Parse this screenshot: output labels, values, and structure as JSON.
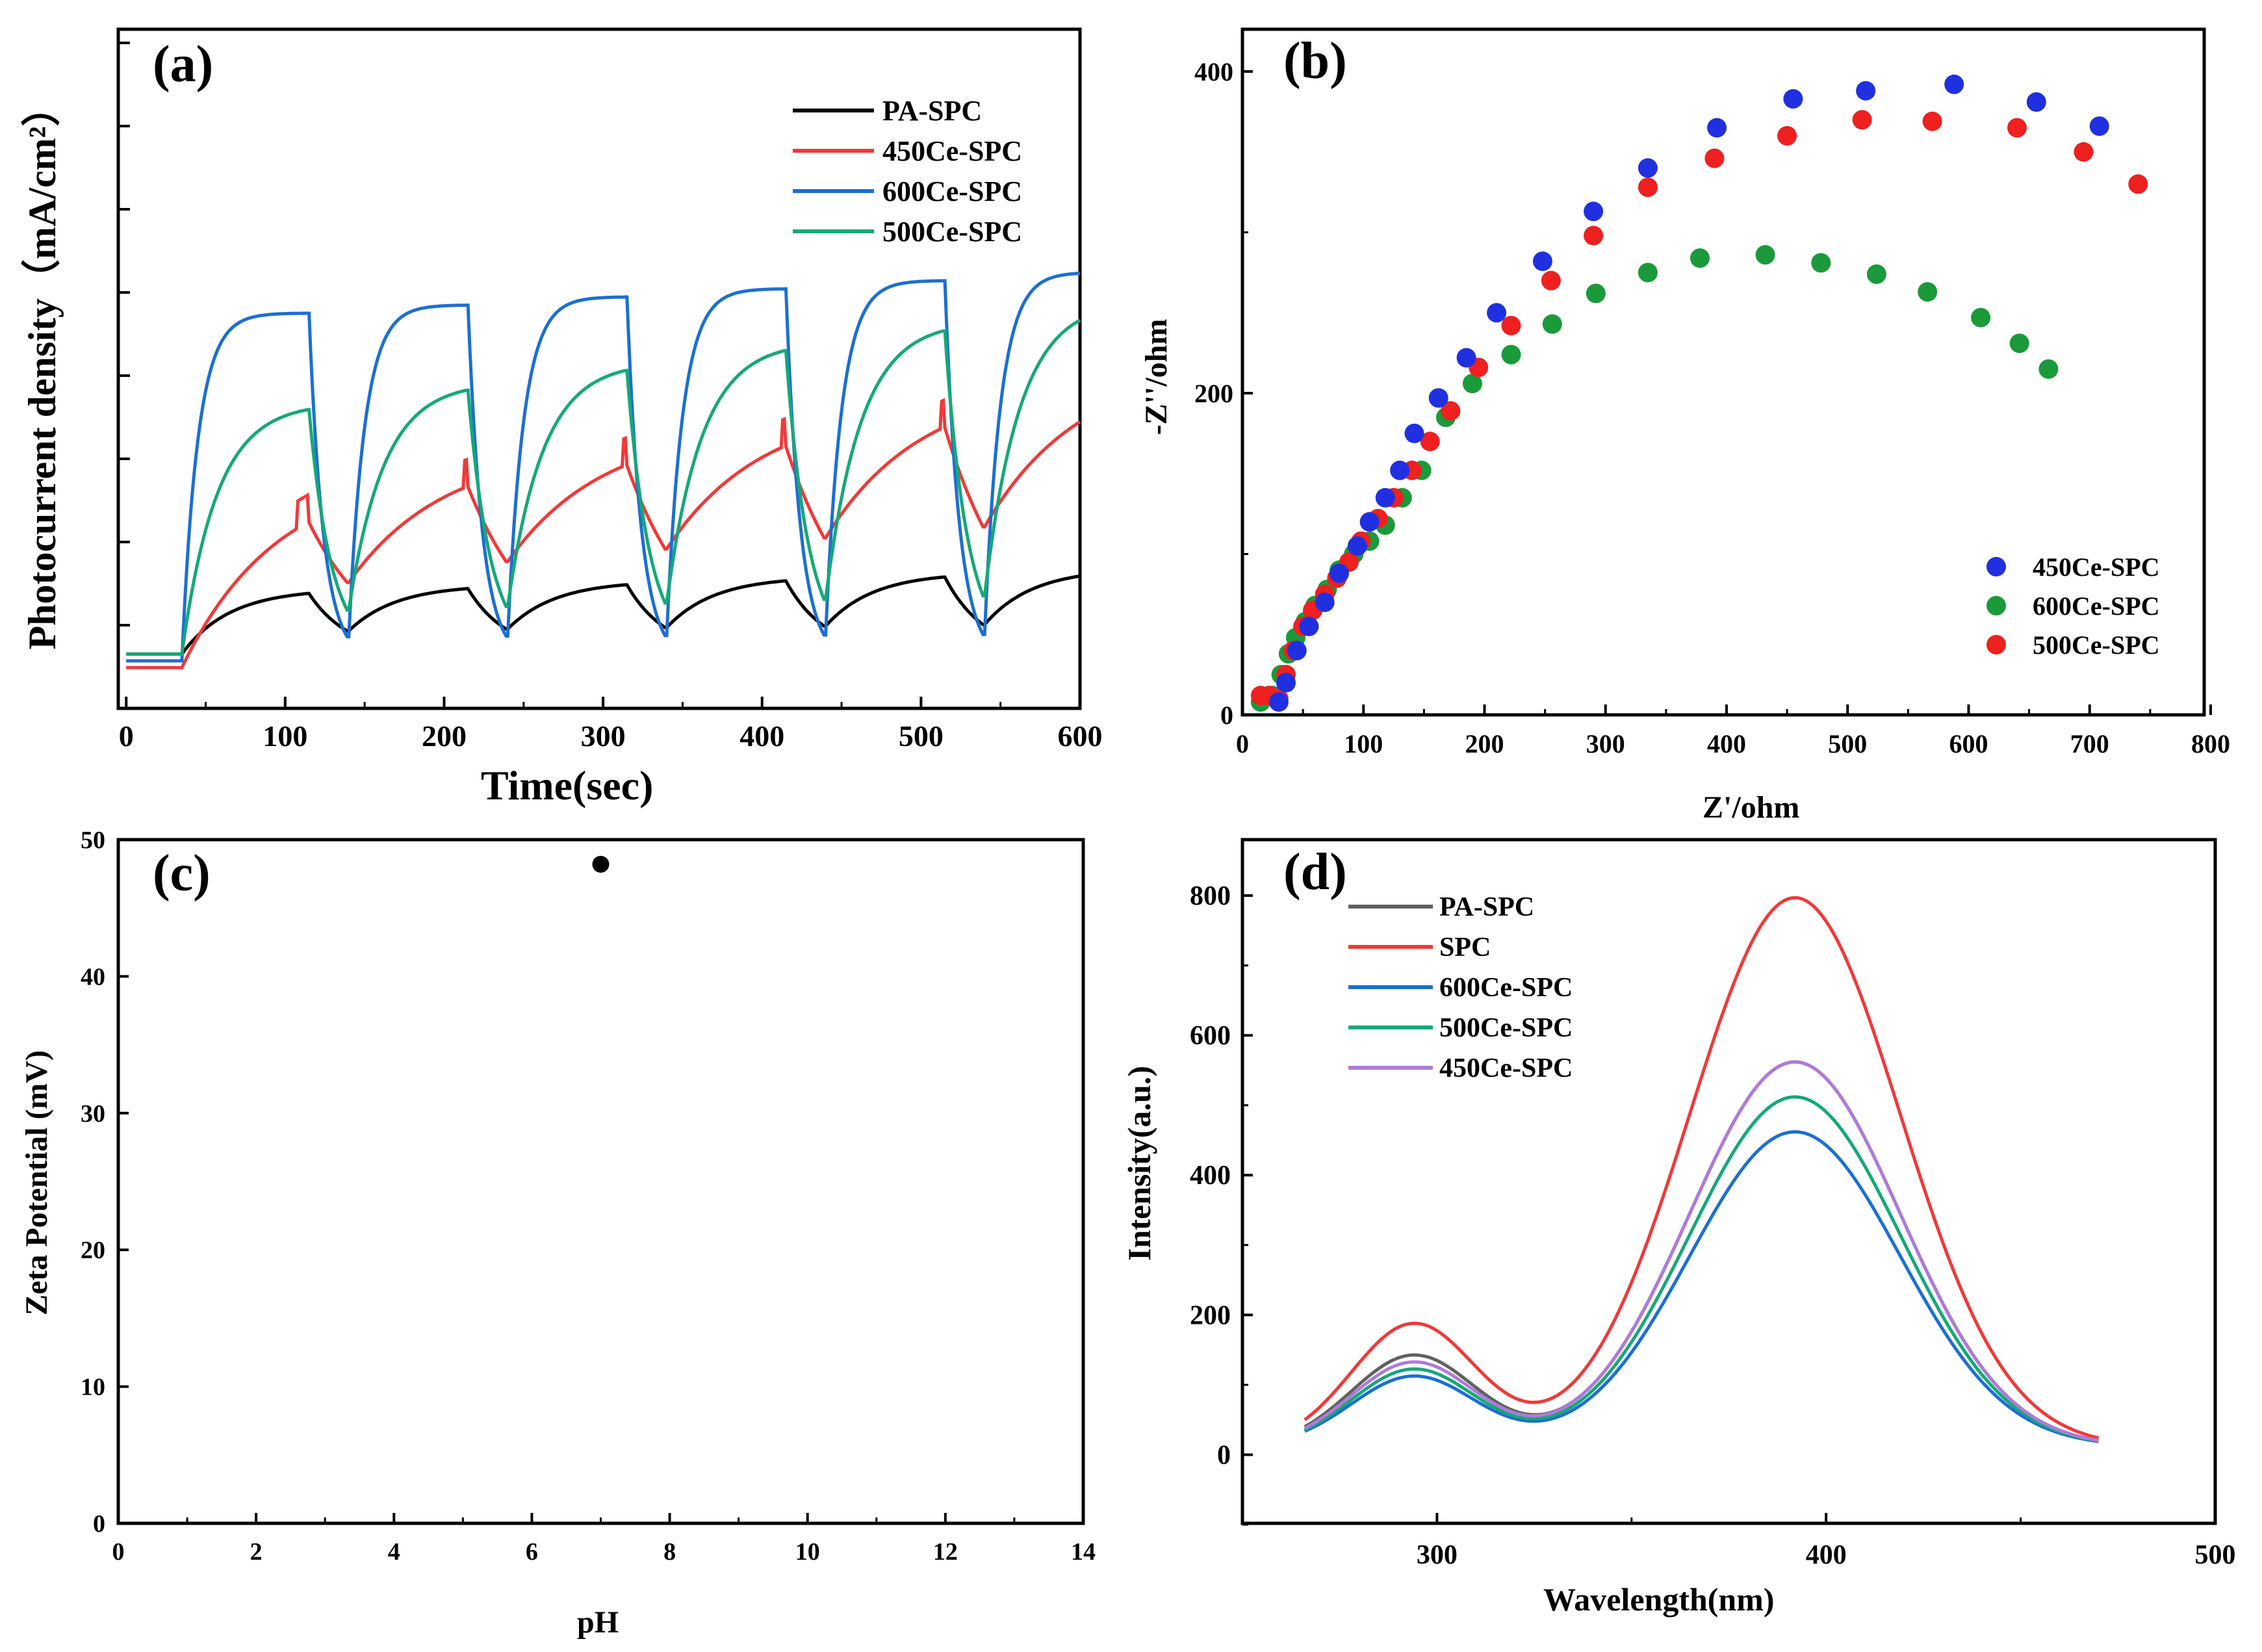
{
  "figure": "Photoelectrochemical and optical characterization",
  "chart_data": [
    {
      "panel": "(a)",
      "type": "line",
      "title": "",
      "xlabel": "Time(sec)",
      "ylabel": "Photocurrent density（mA/cm²）",
      "xlim": [
        -5,
        600
      ],
      "ylim": [
        0,
        100
      ],
      "xticks": [
        0,
        100,
        200,
        300,
        400,
        500,
        600
      ],
      "legend": "top-right",
      "light_on": [
        35,
        140,
        240,
        340,
        440,
        540
      ],
      "light_off": [
        115,
        215,
        315,
        415,
        515
      ],
      "series": [
        {
          "name": "PA-SPC",
          "color": "#000000",
          "base": 8,
          "rise": 9,
          "tau_on": 30,
          "tau_off": 25,
          "drift": 0.6
        },
        {
          "name": "450Ce-SPC",
          "color": "#ee3a3a",
          "base": 6,
          "rise": 26,
          "tau_on": 60,
          "tau_off": 45,
          "drift": 3.2,
          "spike": 4
        },
        {
          "name": "600Ce-SPC",
          "color": "#1c6fd1",
          "base": 7,
          "rise": 50,
          "tau_on": 10,
          "tau_off": 9,
          "drift": 1.2
        },
        {
          "name": "500Ce-SPC",
          "color": "#16a878",
          "base": 8,
          "rise": 34,
          "tau_on": 22,
          "tau_off": 14,
          "drift": 3.0
        }
      ]
    },
    {
      "panel": "(b)",
      "type": "scatter",
      "title": "",
      "xlabel": "Z'/ohm",
      "ylabel": "-Z''/ohm",
      "xlim": [
        0,
        800
      ],
      "ylim": [
        0,
        400
      ],
      "xticks": [
        0,
        100,
        200,
        300,
        400,
        500,
        600,
        700,
        800
      ],
      "yticks": [
        0,
        200,
        400
      ],
      "legend": "bottom-right",
      "series": [
        {
          "name": "450Ce-SPC",
          "color": "#2030e0",
          "points": [
            [
              30,
              8
            ],
            [
              36,
              20
            ],
            [
              45,
              40
            ],
            [
              55,
              55
            ],
            [
              68,
              70
            ],
            [
              80,
              88
            ],
            [
              95,
              105
            ],
            [
              105,
              120
            ],
            [
              118,
              135
            ],
            [
              130,
              152
            ],
            [
              142,
              175
            ],
            [
              162,
              197
            ],
            [
              185,
              222
            ],
            [
              210,
              250
            ],
            [
              248,
              282
            ],
            [
              290,
              313
            ],
            [
              335,
              340
            ],
            [
              392,
              365
            ],
            [
              455,
              383
            ],
            [
              515,
              388
            ],
            [
              588,
              392
            ],
            [
              656,
              381
            ],
            [
              708,
              366
            ]
          ]
        },
        {
          "name": "600Ce-SPC",
          "color": "#1a9a3a",
          "points": [
            [
              15,
              8
            ],
            [
              25,
              12
            ],
            [
              32,
              25
            ],
            [
              38,
              38
            ],
            [
              44,
              48
            ],
            [
              52,
              58
            ],
            [
              60,
              68
            ],
            [
              70,
              78
            ],
            [
              80,
              90
            ],
            [
              92,
              100
            ],
            [
              105,
              108
            ],
            [
              118,
              118
            ],
            [
              132,
              135
            ],
            [
              148,
              152
            ],
            [
              168,
              185
            ],
            [
              190,
              206
            ],
            [
              222,
              224
            ],
            [
              256,
              243
            ],
            [
              292,
              262
            ],
            [
              335,
              275
            ],
            [
              378,
              284
            ],
            [
              432,
              286
            ],
            [
              478,
              281
            ],
            [
              524,
              274
            ],
            [
              566,
              263
            ],
            [
              610,
              247
            ],
            [
              642,
              231
            ],
            [
              666,
              215
            ]
          ]
        },
        {
          "name": "500Ce-SPC",
          "color": "#ee2020",
          "points": [
            [
              15,
              12
            ],
            [
              22,
              12
            ],
            [
              30,
              10
            ],
            [
              36,
              25
            ],
            [
              42,
              40
            ],
            [
              50,
              55
            ],
            [
              58,
              65
            ],
            [
              68,
              75
            ],
            [
              78,
              85
            ],
            [
              88,
              95
            ],
            [
              98,
              108
            ],
            [
              112,
              122
            ],
            [
              125,
              135
            ],
            [
              140,
              152
            ],
            [
              155,
              170
            ],
            [
              172,
              189
            ],
            [
              195,
              216
            ],
            [
              222,
              242
            ],
            [
              255,
              270
            ],
            [
              290,
              298
            ],
            [
              335,
              328
            ],
            [
              390,
              346
            ],
            [
              450,
              360
            ],
            [
              512,
              370
            ],
            [
              570,
              369
            ],
            [
              640,
              365
            ],
            [
              695,
              350
            ],
            [
              740,
              330
            ]
          ]
        }
      ]
    },
    {
      "panel": "(c)",
      "type": "scatter",
      "title": "",
      "xlabel": "pH",
      "ylabel": "Zeta Potential (mV)",
      "xlim": [
        0,
        14
      ],
      "ylim": [
        0,
        50
      ],
      "xticks": [
        0,
        2,
        4,
        6,
        8,
        10,
        12,
        14
      ],
      "yticks": [
        0,
        10,
        20,
        30,
        40,
        50
      ],
      "series": [
        {
          "name": "",
          "color": "#000000",
          "points": [
            [
              7,
              48.2
            ]
          ]
        }
      ]
    },
    {
      "panel": "(d)",
      "type": "line",
      "title": "",
      "xlabel": "Wavelength(nm)",
      "ylabel": "Intensity(a.u.)",
      "xlim": [
        250,
        500
      ],
      "ylim": [
        -100,
        880
      ],
      "xticks": [
        300,
        400,
        500
      ],
      "yticks": [
        0,
        200,
        400,
        600,
        800
      ],
      "x_range": [
        266,
        470
      ],
      "legend": "top-left",
      "series": [
        {
          "name": "PA-SPC",
          "color": "#606060",
          "peak1": 130,
          "peak2": 550
        },
        {
          "name": "SPC",
          "color": "#ee3a3a",
          "peak1": 175,
          "peak2": 785
        },
        {
          "name": "600Ce-SPC",
          "color": "#1c6fd1",
          "peak1": 100,
          "peak2": 450
        },
        {
          "name": "500Ce-SPC",
          "color": "#16a878",
          "peak1": 110,
          "peak2": 500
        },
        {
          "name": "450Ce-SPC",
          "color": "#b07ad8",
          "peak1": 120,
          "peak2": 550
        }
      ]
    }
  ]
}
